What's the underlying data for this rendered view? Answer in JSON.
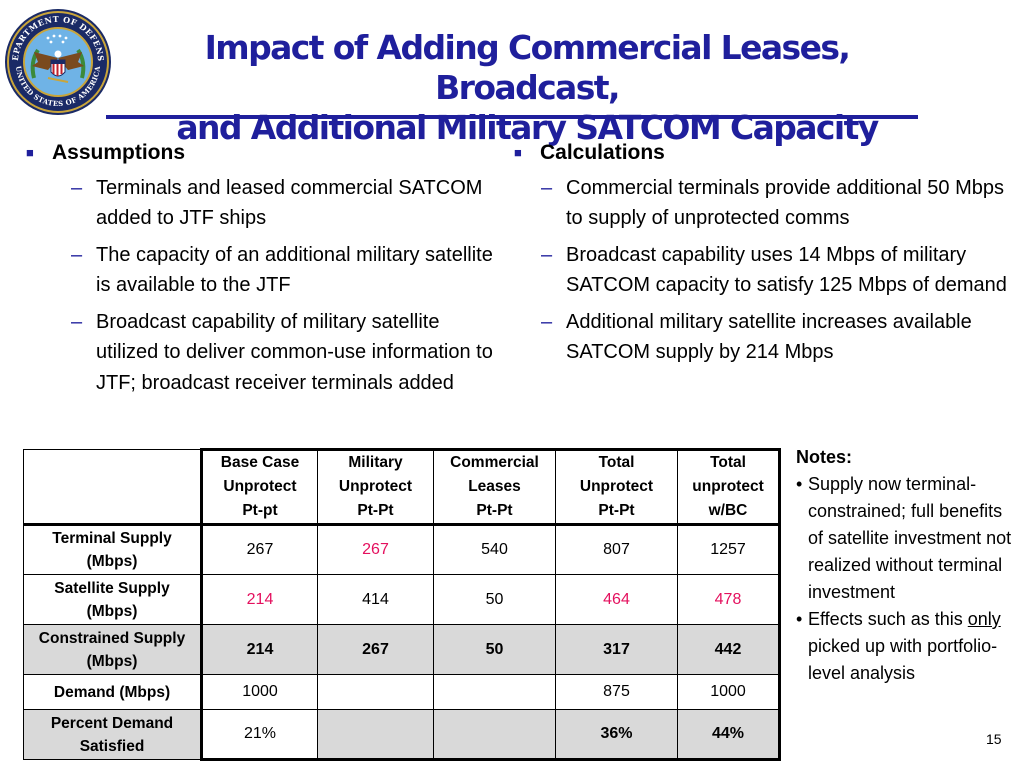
{
  "seal": {
    "ring_text_top": "DEPARTMENT OF DEFENSE",
    "ring_text_bottom": "UNITED STATES OF AMERICA"
  },
  "title": {
    "line1": "Impact of Adding Commercial Leases, Broadcast,",
    "line2": "and Additional Military SATCOM Capacity"
  },
  "assumptions": {
    "heading": "Assumptions",
    "items": [
      "Terminals and leased commercial SATCOM added to JTF ships",
      "The capacity of an additional military satellite is available to the JTF",
      "Broadcast capability of military satellite utilized to deliver common-use information to JTF; broadcast receiver terminals added"
    ]
  },
  "calculations": {
    "heading": "Calculations",
    "items": [
      "Commercial terminals provide additional 50 Mbps to supply of unprotected comms",
      "Broadcast capability uses 14 Mbps of military SATCOM capacity to satisfy 125 Mbps of demand",
      "Additional military satellite increases available SATCOM supply by 214 Mbps"
    ]
  },
  "table": {
    "headers": [
      "",
      [
        "Base Case",
        "Unprotect",
        "Pt-pt"
      ],
      [
        "Military",
        "Unprotect",
        "Pt-Pt"
      ],
      [
        "Commercial",
        "Leases",
        "Pt-Pt"
      ],
      [
        "Total",
        "Unprotect",
        "Pt-Pt"
      ],
      [
        "Total",
        "unprotect",
        "w/BC"
      ]
    ],
    "rows": [
      {
        "label": [
          "Terminal Supply",
          "(Mbps)"
        ],
        "cells": [
          "267",
          "267",
          "540",
          "807",
          "1257"
        ]
      },
      {
        "label": [
          "Satellite Supply",
          "(Mbps)"
        ],
        "cells": [
          "214",
          "414",
          "50",
          "464",
          "478"
        ]
      },
      {
        "label": [
          "Constrained Supply",
          "(Mbps)"
        ],
        "cells": [
          "214",
          "267",
          "50",
          "317",
          "442"
        ]
      },
      {
        "label": [
          "Demand (Mbps)"
        ],
        "cells": [
          "1000",
          "",
          "",
          "875",
          "1000"
        ]
      },
      {
        "label": [
          "Percent Demand",
          "Satisfied"
        ],
        "cells": [
          "21%",
          "",
          "",
          "36%",
          "44%"
        ]
      }
    ],
    "highlight_color": "#e4105e",
    "shade_color": "#d9d9d9"
  },
  "notes": {
    "heading": "Notes:",
    "item1": "Supply now terminal-constrained; full benefits of satellite investment not realized without terminal investment",
    "item2_pre": "Effects such as this ",
    "item2_underline": "only",
    "item2_post": " picked up with portfolio-level analysis"
  },
  "page_number": "15",
  "colors": {
    "title": "#1f1f9c",
    "bullet": "#1f1f9c"
  }
}
